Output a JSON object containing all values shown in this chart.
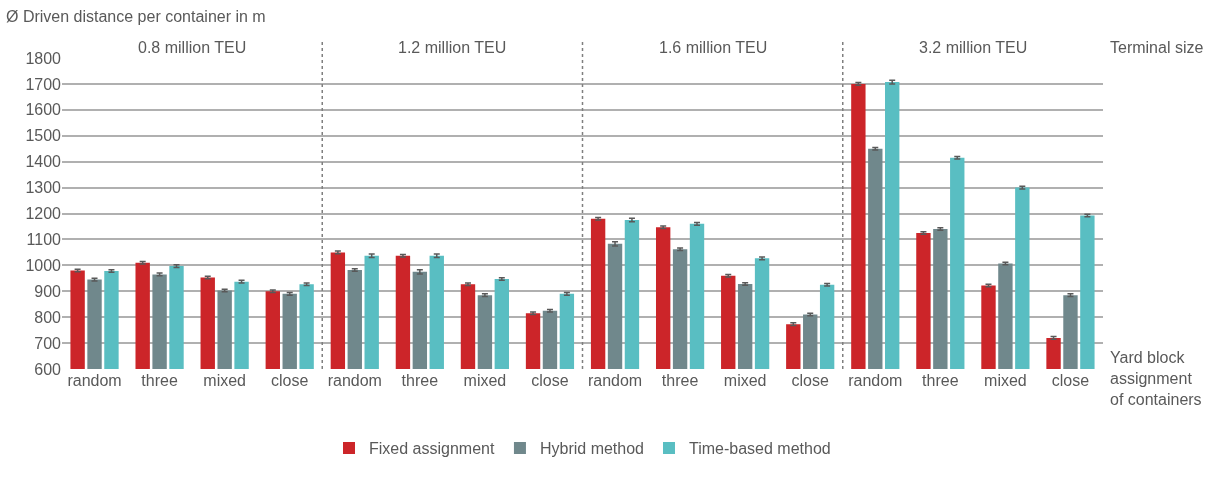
{
  "chart_data": {
    "type": "bar",
    "ylabel": "Ø Driven distance per container in m",
    "categories": [
      "random",
      "three",
      "mixed",
      "close",
      "random",
      "three",
      "mixed",
      "close",
      "random",
      "three",
      "mixed",
      "close",
      "random",
      "three",
      "mixed",
      "close"
    ],
    "series": [
      {
        "name": "Fixed assignment",
        "color": "#cc2529",
        "values": [
          980,
          1010,
          953,
          900,
          1050,
          1037,
          927,
          815,
          1180,
          1147,
          960,
          773,
          1700,
          1125,
          922,
          720
        ],
        "errors": [
          5,
          5,
          5,
          5,
          5,
          5,
          5,
          5,
          5,
          5,
          5,
          5,
          5,
          5,
          5,
          5
        ]
      },
      {
        "name": "Hybrid method",
        "color": "#70888c",
        "values": [
          945,
          965,
          903,
          890,
          982,
          975,
          885,
          825,
          1083,
          1062,
          928,
          810,
          1450,
          1140,
          1007,
          885
        ],
        "errors": [
          5,
          5,
          5,
          5,
          5,
          8,
          5,
          5,
          8,
          5,
          5,
          5,
          5,
          5,
          5,
          5
        ]
      },
      {
        "name": "Time-based method",
        "color": "#59bec2",
        "values": [
          978,
          997,
          937,
          927,
          1037,
          1037,
          947,
          890,
          1175,
          1160,
          1027,
          925,
          1707,
          1415,
          1300,
          1192
        ],
        "errors": [
          5,
          5,
          5,
          5,
          7,
          7,
          5,
          5,
          7,
          5,
          5,
          5,
          7,
          5,
          5,
          5
        ]
      }
    ],
    "ylim": [
      600,
      1800
    ],
    "yticks": [
      600,
      700,
      800,
      900,
      1000,
      1100,
      1200,
      1300,
      1400,
      1500,
      1600,
      1700,
      1800
    ],
    "grid": "y",
    "legend": "bottom",
    "annotations": [
      "0.8 million TEU",
      "1.2 million TEU",
      "1.6 million TEU",
      "3.2 million TEU",
      "Terminal size",
      "Yard block\nassignment\nof containers"
    ]
  }
}
